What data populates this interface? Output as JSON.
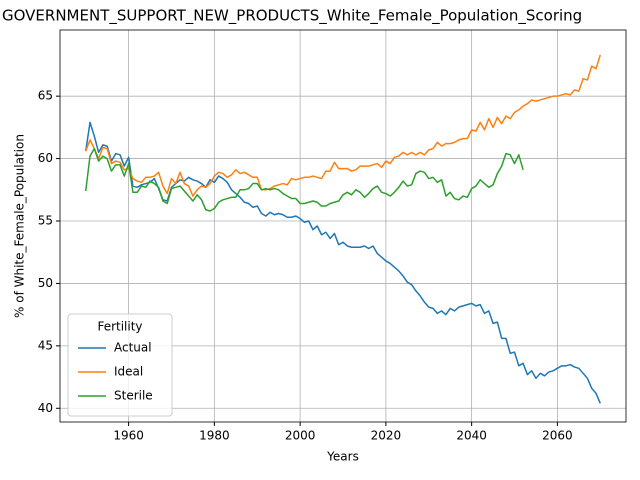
{
  "chart_data": {
    "type": "line",
    "title": "GOVERNMENT_SUPPORT_NEW_PRODUCTS_White_Female_Population_Scoring",
    "x_label": "Years",
    "y_label": "% of White_Female_Population",
    "legend_title": "Fertility",
    "legend_position": "lower left",
    "grid": true,
    "xlim": [
      1944,
      2076
    ],
    "ylim": [
      38.9,
      70.3
    ],
    "xticks": [
      1960,
      1980,
      2000,
      2020,
      2040,
      2060
    ],
    "yticks": [
      40,
      45,
      50,
      55,
      60,
      65
    ],
    "x": [
      1950,
      1951,
      1952,
      1953,
      1954,
      1955,
      1956,
      1957,
      1958,
      1959,
      1960,
      1961,
      1962,
      1963,
      1964,
      1965,
      1966,
      1967,
      1968,
      1969,
      1970,
      1971,
      1972,
      1973,
      1974,
      1975,
      1976,
      1977,
      1978,
      1979,
      1980,
      1981,
      1982,
      1983,
      1984,
      1985,
      1986,
      1987,
      1988,
      1989,
      1990,
      1991,
      1992,
      1993,
      1994,
      1995,
      1996,
      1997,
      1998,
      1999,
      2000,
      2001,
      2002,
      2003,
      2004,
      2005,
      2006,
      2007,
      2008,
      2009,
      2010,
      2011,
      2012,
      2013,
      2014,
      2015,
      2016,
      2017,
      2018,
      2019,
      2020,
      2021,
      2022,
      2023,
      2024,
      2025,
      2026,
      2027,
      2028,
      2029,
      2030,
      2031,
      2032,
      2033,
      2034,
      2035,
      2036,
      2037,
      2038,
      2039,
      2040,
      2041,
      2042,
      2043,
      2044,
      2045,
      2046,
      2047,
      2048,
      2049,
      2050,
      2051,
      2052,
      2053,
      2054,
      2055,
      2056,
      2057,
      2058,
      2059,
      2060,
      2061,
      2062,
      2063,
      2064,
      2065,
      2066,
      2067,
      2068,
      2069,
      2070
    ],
    "series": [
      {
        "name": "Actual",
        "color": "#1f77b4",
        "values": [
          60.6,
          62.9,
          61.8,
          60.5,
          61.1,
          61.0,
          59.8,
          60.4,
          60.3,
          59.4,
          60.1,
          57.8,
          57.7,
          57.9,
          58.0,
          58.1,
          58.4,
          57.6,
          56.7,
          56.6,
          57.7,
          58.0,
          58.3,
          58.2,
          58.5,
          58.3,
          58.2,
          58.0,
          57.7,
          58.3,
          58.1,
          58.6,
          58.4,
          58.1,
          57.5,
          57.2,
          56.9,
          56.5,
          56.4,
          56.1,
          56.2,
          55.6,
          55.4,
          55.7,
          55.5,
          55.6,
          55.5,
          55.3,
          55.3,
          55.4,
          55.2,
          54.9,
          55.0,
          54.3,
          54.6,
          53.9,
          54.1,
          53.6,
          54.0,
          53.1,
          53.3,
          53.0,
          52.9,
          52.9,
          52.9,
          53.0,
          52.8,
          53.0,
          52.4,
          52.1,
          51.8,
          51.6,
          51.3,
          51.0,
          50.6,
          50.1,
          49.9,
          49.4,
          49.0,
          48.5,
          48.1,
          48.0,
          47.6,
          47.8,
          47.5,
          48.0,
          47.8,
          48.1,
          48.2,
          48.3,
          48.4,
          48.2,
          48.3,
          47.6,
          47.8,
          46.8,
          46.9,
          45.6,
          45.6,
          44.4,
          44.5,
          43.4,
          43.6,
          42.7,
          43.0,
          42.4,
          42.8,
          42.6,
          42.9,
          43.0,
          43.2,
          43.4,
          43.4,
          43.5,
          43.3,
          43.2,
          42.8,
          42.4,
          41.6,
          41.2,
          40.4
        ]
      },
      {
        "name": "Ideal",
        "color": "#ff7f0e",
        "values": [
          60.6,
          61.5,
          60.8,
          60.0,
          60.9,
          60.8,
          59.6,
          59.8,
          59.7,
          59.1,
          59.2,
          58.4,
          58.2,
          58.1,
          58.5,
          58.5,
          58.6,
          58.9,
          57.8,
          57.2,
          58.4,
          58.0,
          58.9,
          58.0,
          57.8,
          57.0,
          57.5,
          57.8,
          57.7,
          58.0,
          58.6,
          58.9,
          58.8,
          58.5,
          58.7,
          59.1,
          58.8,
          58.9,
          58.7,
          58.5,
          58.5,
          57.5,
          57.5,
          57.6,
          57.8,
          57.9,
          58.0,
          57.9,
          58.4,
          58.3,
          58.4,
          58.5,
          58.5,
          58.6,
          58.5,
          58.4,
          59.0,
          59.0,
          59.7,
          59.2,
          59.2,
          59.2,
          59.0,
          59.1,
          59.4,
          59.4,
          59.4,
          59.5,
          59.6,
          59.3,
          59.8,
          59.6,
          60.1,
          60.2,
          60.5,
          60.3,
          60.5,
          60.3,
          60.5,
          60.3,
          60.7,
          60.8,
          61.3,
          61.0,
          61.2,
          61.2,
          61.3,
          61.5,
          61.6,
          61.6,
          62.3,
          62.2,
          62.9,
          62.3,
          63.2,
          62.5,
          63.3,
          62.8,
          63.4,
          63.2,
          63.7,
          63.9,
          64.2,
          64.4,
          64.7,
          64.6,
          64.7,
          64.8,
          64.9,
          65.0,
          65.0,
          65.1,
          65.2,
          65.1,
          65.5,
          65.4,
          66.4,
          66.3,
          67.4,
          67.2,
          68.3
        ]
      },
      {
        "name": "Sterile",
        "color": "#2ca02c",
        "values": [
          57.4,
          60.2,
          60.8,
          59.8,
          60.2,
          60.0,
          59.0,
          59.5,
          59.5,
          58.6,
          59.6,
          57.3,
          57.3,
          57.8,
          57.7,
          58.2,
          58.0,
          57.7,
          56.6,
          56.4,
          57.6,
          57.7,
          57.8,
          57.4,
          57.0,
          56.6,
          57.1,
          56.7,
          55.9,
          55.8,
          56.0,
          56.5,
          56.7,
          56.8,
          56.9,
          56.9,
          57.5,
          57.5,
          57.6,
          58.0,
          58.0,
          57.5,
          57.6,
          57.5,
          57.6,
          57.5,
          57.2,
          57.0,
          56.8,
          56.8,
          56.4,
          56.4,
          56.5,
          56.6,
          56.5,
          56.2,
          56.2,
          56.4,
          56.5,
          56.6,
          57.1,
          57.3,
          57.1,
          57.5,
          57.3,
          56.9,
          57.2,
          57.6,
          57.8,
          57.3,
          57.2,
          57.0,
          57.3,
          57.7,
          58.2,
          57.8,
          57.9,
          58.8,
          59.0,
          58.9,
          58.4,
          58.5,
          58.1,
          58.3,
          57.0,
          57.3,
          56.8,
          56.7,
          57.0,
          56.9,
          57.6,
          57.8,
          58.3,
          58.0,
          57.7,
          57.9,
          58.8,
          59.4,
          60.4,
          60.3,
          59.6,
          60.3,
          59.1,
          null,
          null,
          null,
          null,
          null,
          null,
          null,
          null,
          null,
          null,
          null,
          null,
          null,
          null,
          null,
          null,
          null,
          null
        ]
      }
    ]
  }
}
